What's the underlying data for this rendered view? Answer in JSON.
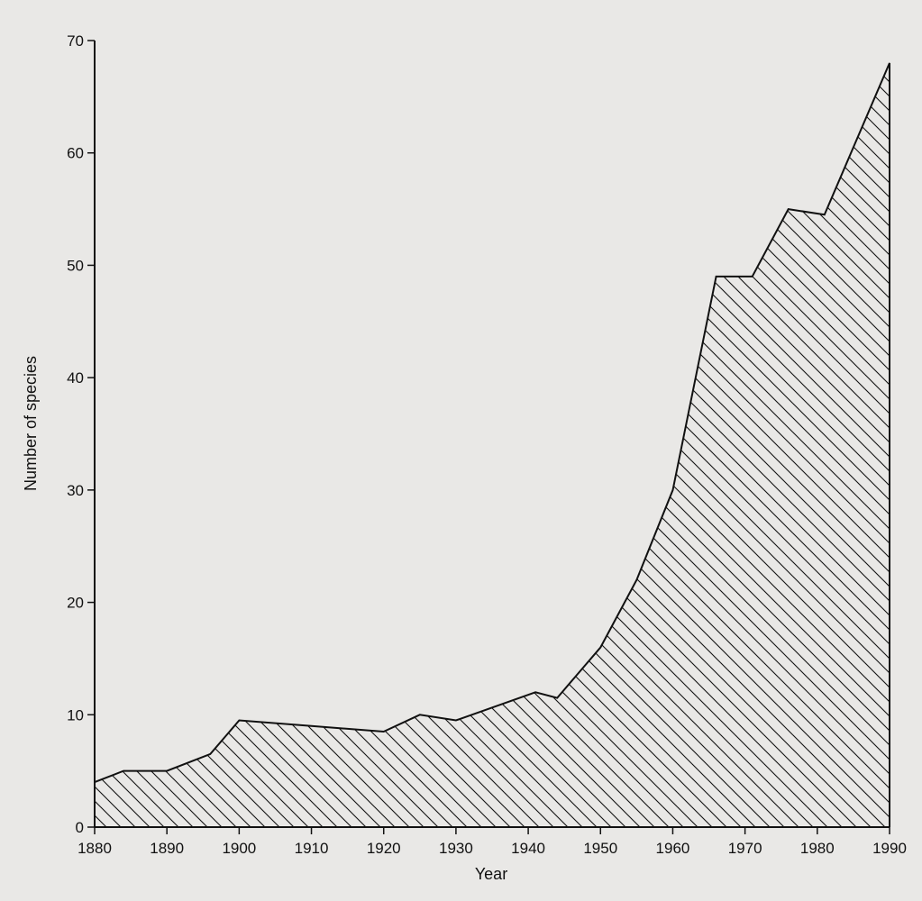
{
  "chart_data": {
    "type": "area",
    "title": "",
    "xlabel": "Year",
    "ylabel": "Number of species",
    "xlim": [
      1880,
      1990
    ],
    "ylim": [
      0,
      70
    ],
    "grid": false,
    "legend": "none",
    "x_ticks": [
      "1880",
      "1890",
      "1900",
      "1910",
      "1920",
      "1930",
      "1940",
      "1950",
      "1960",
      "1970",
      "1980",
      "1990"
    ],
    "y_ticks": [
      "0",
      "10",
      "20",
      "30",
      "40",
      "50",
      "60",
      "70"
    ],
    "fill_pattern": "diagonal-hatch",
    "line_color": "#111111",
    "background_color": "#e9e8e6",
    "series": [
      {
        "x": [
          1880,
          1884,
          1890,
          1896,
          1900,
          1910,
          1920,
          1925,
          1930,
          1941,
          1944,
          1950,
          1955,
          1960,
          1966,
          1971,
          1976,
          1981,
          1990
        ],
        "y": [
          4,
          5,
          5,
          6.5,
          9.5,
          9,
          8.5,
          10,
          9.5,
          12,
          11.5,
          16,
          22,
          30,
          49,
          49,
          55,
          54.5,
          68
        ]
      }
    ]
  }
}
